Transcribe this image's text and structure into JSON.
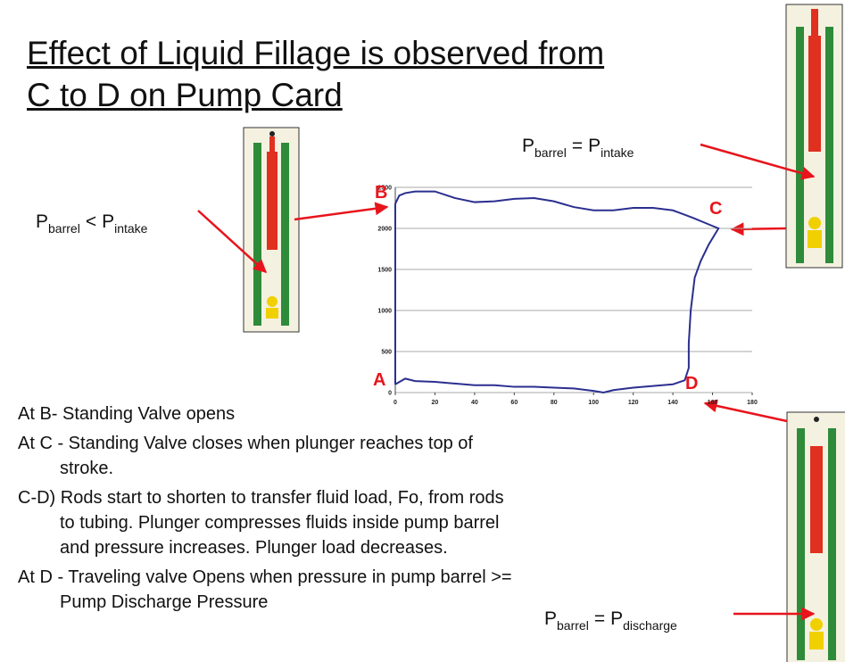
{
  "title": "Effect of Liquid Fillage is observed from C to D on Pump Card",
  "labels": [
    {
      "p1": "P",
      "sub1": "barrel",
      "op": "<",
      "p2": "P",
      "sub2": "intake"
    },
    {
      "p1": "P",
      "sub1": "barrel",
      "op": "=",
      "p2": "P",
      "sub2": "intake"
    },
    {
      "p1": "P",
      "sub1": "barrel",
      "op": "=",
      "p2": "P",
      "sub2": "discharge"
    }
  ],
  "bullets": [
    "At B- Standing Valve opens",
    "At C - Standing Valve closes when plunger reaches top of stroke.",
    "C-D) Rods start to shorten to transfer fluid load, Fo, from rods to tubing. Plunger compresses fluids inside pump barrel and pressure increases. Plunger load decreases.",
    "At D - Traveling valve Opens when pressure in pump barrel >= Pump Discharge Pressure"
  ],
  "chart_data": {
    "type": "line",
    "annotations": [
      "A",
      "B",
      "C",
      "D"
    ],
    "series": [
      {
        "color": "#2b2f8f",
        "x": [
          0,
          0,
          2,
          5,
          10,
          20,
          30,
          40,
          50,
          60,
          70,
          80,
          90,
          100,
          110,
          120,
          130,
          140,
          150,
          160,
          163,
          158,
          154,
          151,
          149,
          148,
          148,
          146,
          140,
          130,
          120,
          110,
          105,
          100,
          90,
          80,
          70,
          60,
          50,
          40,
          30,
          20,
          10,
          5,
          0
        ],
        "values": [
          100,
          2300,
          2400,
          2430,
          2450,
          2450,
          2370,
          2320,
          2330,
          2360,
          2370,
          2330,
          2260,
          2220,
          2220,
          2250,
          2250,
          2220,
          2130,
          2030,
          2000,
          1800,
          1600,
          1400,
          1000,
          600,
          300,
          150,
          100,
          80,
          60,
          30,
          0,
          20,
          50,
          60,
          70,
          70,
          90,
          90,
          110,
          130,
          140,
          170,
          100
        ]
      }
    ],
    "xlim": [
      0,
      180
    ],
    "xticks": [
      0,
      20,
      40,
      60,
      80,
      100,
      120,
      140,
      160,
      180
    ],
    "ylim": [
      0,
      2500
    ],
    "yticks": [
      0,
      500,
      1000,
      1500,
      2000,
      2500
    ],
    "grid": true
  }
}
